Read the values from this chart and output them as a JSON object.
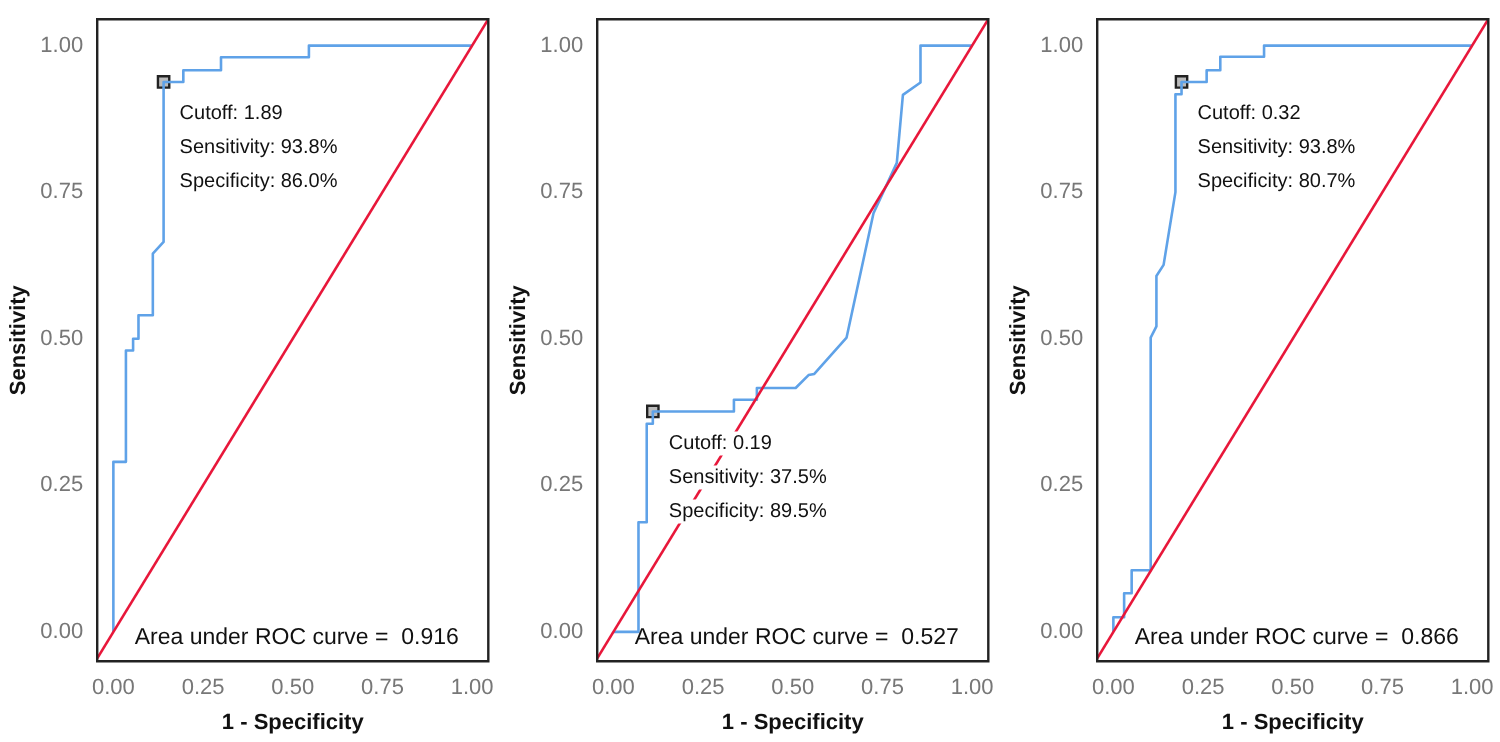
{
  "chart_data": [
    {
      "type": "line",
      "xlabel": "1 - Specificity",
      "ylabel": "Sensitivity",
      "xlim": [
        -0.045,
        1.045
      ],
      "ylim": [
        -0.05,
        1.045
      ],
      "xticks": [
        {
          "value": 0,
          "label": "0.00"
        },
        {
          "value": 0.25,
          "label": "0.25"
        },
        {
          "value": 0.5,
          "label": "0.50"
        },
        {
          "value": 0.75,
          "label": "0.75"
        },
        {
          "value": 1,
          "label": "1.00"
        }
      ],
      "yticks": [
        {
          "value": 0,
          "label": "0.00"
        },
        {
          "value": 0.25,
          "label": "0.25"
        },
        {
          "value": 0.5,
          "label": "0.50"
        },
        {
          "value": 0.75,
          "label": "0.75"
        },
        {
          "value": 1,
          "label": "1.00"
        }
      ],
      "grid": false,
      "legend": false,
      "series": [
        {
          "type": "line",
          "color": "#e8173a",
          "marker": "none",
          "x": [
            -0.045,
            1.045
          ],
          "values": [
            -0.045,
            1.045
          ]
        },
        {
          "color": "#5fa2e8",
          "marker": "none",
          "x": [
            0,
            0,
            0.035,
            0.035,
            0.055,
            0.055,
            0.07,
            0.07,
            0.11,
            0.11,
            0.14,
            0.14,
            0.195,
            0.195,
            0.3,
            0.3,
            0.545,
            0.545,
            1
          ],
          "values": [
            0,
            0.29,
            0.29,
            0.48,
            0.48,
            0.5,
            0.5,
            0.54,
            0.54,
            0.645,
            0.665,
            0.938,
            0.938,
            0.958,
            0.958,
            0.98,
            0.98,
            1,
            1
          ]
        },
        {
          "type": "scatter",
          "color": "#222222",
          "marker": "square",
          "x": [
            0.14
          ],
          "values": [
            0.938
          ]
        }
      ],
      "annotations": [
        {
          "text": "Cutoff: 1.89\nSensitivity: 93.8%\nSpecificity: 86.0%",
          "x": 0.14,
          "y": 0.938
        },
        "Area under ROC curve =  0.916"
      ]
    },
    {
      "type": "line",
      "xlabel": "1 - Specificity",
      "ylabel": "Sensitivity",
      "xlim": [
        -0.045,
        1.045
      ],
      "ylim": [
        -0.05,
        1.045
      ],
      "xticks": [
        {
          "value": 0,
          "label": "0.00"
        },
        {
          "value": 0.25,
          "label": "0.25"
        },
        {
          "value": 0.5,
          "label": "0.50"
        },
        {
          "value": 0.75,
          "label": "0.75"
        },
        {
          "value": 1,
          "label": "1.00"
        }
      ],
      "yticks": [
        {
          "value": 0,
          "label": "0.00"
        },
        {
          "value": 0.25,
          "label": "0.25"
        },
        {
          "value": 0.5,
          "label": "0.50"
        },
        {
          "value": 0.75,
          "label": "0.75"
        },
        {
          "value": 1,
          "label": "1.00"
        }
      ],
      "grid": false,
      "legend": false,
      "series": [
        {
          "type": "line",
          "color": "#e8173a",
          "marker": "none",
          "x": [
            -0.045,
            1.045
          ],
          "values": [
            -0.045,
            1.045
          ]
        },
        {
          "color": "#5fa2e8",
          "marker": "none",
          "x": [
            0,
            0.07,
            0.07,
            0.093,
            0.093,
            0.11,
            0.11,
            0.336,
            0.336,
            0.4,
            0.4,
            0.508,
            0.544,
            0.56,
            0.65,
            0.725,
            0.79,
            0.807,
            0.856,
            0.856,
            1
          ],
          "values": [
            0,
            0,
            0.187,
            0.187,
            0.355,
            0.355,
            0.376,
            0.376,
            0.396,
            0.396,
            0.416,
            0.416,
            0.438,
            0.44,
            0.502,
            0.714,
            0.8,
            0.916,
            0.937,
            1,
            1
          ]
        },
        {
          "type": "scatter",
          "color": "#222222",
          "marker": "square",
          "x": [
            0.11
          ],
          "values": [
            0.376
          ]
        }
      ],
      "annotations": [
        {
          "text": "Cutoff: 0.19\nSensitivity: 37.5%\nSpecificity: 89.5%",
          "x": 0.11,
          "y": 0.376
        },
        "Area under ROC curve =  0.527"
      ]
    },
    {
      "type": "line",
      "xlabel": "1 - Specificity",
      "ylabel": "Sensitivity",
      "xlim": [
        -0.045,
        1.045
      ],
      "ylim": [
        -0.05,
        1.045
      ],
      "xticks": [
        {
          "value": 0,
          "label": "0.00"
        },
        {
          "value": 0.25,
          "label": "0.25"
        },
        {
          "value": 0.5,
          "label": "0.50"
        },
        {
          "value": 0.75,
          "label": "0.75"
        },
        {
          "value": 1,
          "label": "1.00"
        }
      ],
      "yticks": [
        {
          "value": 0,
          "label": "0.00"
        },
        {
          "value": 0.25,
          "label": "0.25"
        },
        {
          "value": 0.5,
          "label": "0.50"
        },
        {
          "value": 0.75,
          "label": "0.75"
        },
        {
          "value": 1,
          "label": "1.00"
        }
      ],
      "grid": false,
      "legend": false,
      "series": [
        {
          "type": "line",
          "color": "#e8173a",
          "marker": "none",
          "x": [
            -0.045,
            1.045
          ],
          "values": [
            -0.045,
            1.045
          ]
        },
        {
          "color": "#5fa2e8",
          "marker": "none",
          "x": [
            0,
            0,
            0.03,
            0.03,
            0.051,
            0.051,
            0.104,
            0.104,
            0.12,
            0.12,
            0.14,
            0.173,
            0.173,
            0.19,
            0.19,
            0.26,
            0.26,
            0.298,
            0.298,
            0.42,
            0.42,
            1
          ],
          "values": [
            0,
            0.025,
            0.025,
            0.066,
            0.066,
            0.105,
            0.105,
            0.502,
            0.521,
            0.607,
            0.626,
            0.75,
            0.917,
            0.917,
            0.938,
            0.938,
            0.958,
            0.958,
            0.981,
            0.981,
            1,
            1
          ]
        },
        {
          "type": "scatter",
          "color": "#222222",
          "marker": "square",
          "x": [
            0.19
          ],
          "values": [
            0.938
          ]
        }
      ],
      "annotations": [
        {
          "text": "Cutoff: 0.32\nSensitivity: 93.8%\nSpecificity: 80.7%",
          "x": 0.19,
          "y": 0.938
        },
        "Area under ROC curve =  0.866"
      ]
    }
  ]
}
